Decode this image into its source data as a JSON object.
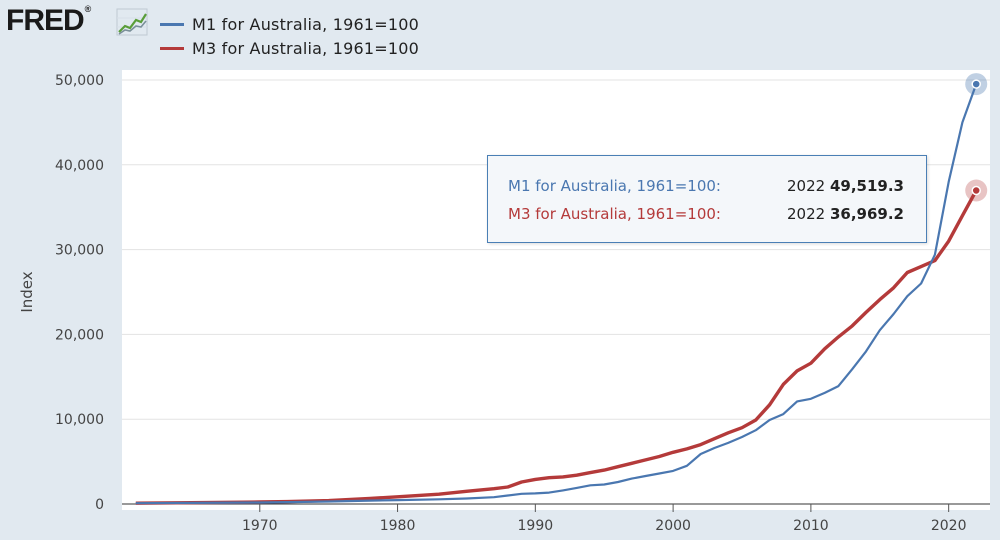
{
  "brand": {
    "logo_text": "FRED",
    "logo_mark": "®"
  },
  "colors": {
    "m1": "#4a77b0",
    "m3": "#b43a3a",
    "plot_bg": "#ffffff",
    "page_bg": "#e1e9f0"
  },
  "legend": [
    {
      "label": "M1 for Australia, 1961=100",
      "color": "#4a77b0"
    },
    {
      "label": "M3 for Australia, 1961=100",
      "color": "#b43a3a"
    }
  ],
  "tooltip": {
    "rows": [
      {
        "name": "M1 for Australia, 1961=100:",
        "year": "2022",
        "value": "49,519.3",
        "color": "#4a77b0"
      },
      {
        "name": "M3 for Australia, 1961=100:",
        "year": "2022",
        "value": "36,969.2",
        "color": "#b43a3a"
      }
    ]
  },
  "chart_data": {
    "type": "line",
    "title": "",
    "xlabel": "",
    "ylabel": "Index",
    "xlim": [
      1960,
      2023
    ],
    "ylim": [
      0,
      50000
    ],
    "xticks": [
      1970,
      1980,
      1990,
      2000,
      2010,
      2020
    ],
    "yticks": [
      0,
      10000,
      20000,
      30000,
      40000,
      50000
    ],
    "ytick_labels": [
      "0",
      "10,000",
      "20,000",
      "30,000",
      "40,000",
      "50,000"
    ],
    "series": [
      {
        "name": "M1 for Australia, 1961=100",
        "x": [
          1961,
          1965,
          1970,
          1972,
          1975,
          1978,
          1980,
          1983,
          1985,
          1987,
          1988,
          1989,
          1990,
          1991,
          1992,
          1993,
          1994,
          1995,
          1996,
          1997,
          1998,
          1999,
          2000,
          2001,
          2002,
          2003,
          2004,
          2005,
          2006,
          2007,
          2008,
          2009,
          2010,
          2011,
          2012,
          2013,
          2014,
          2015,
          2016,
          2017,
          2018,
          2019,
          2020,
          2021,
          2022
        ],
        "values": [
          100,
          130,
          180,
          220,
          300,
          400,
          460,
          560,
          650,
          800,
          1000,
          1200,
          1250,
          1350,
          1600,
          1900,
          2200,
          2300,
          2600,
          3000,
          3300,
          3600,
          3900,
          4500,
          5900,
          6600,
          7200,
          7900,
          8700,
          9900,
          10600,
          12100,
          12400,
          13100,
          13900,
          15900,
          18000,
          20500,
          22400,
          24500,
          26000,
          29400,
          38000,
          45000,
          49519.3
        ]
      },
      {
        "name": "M3 for Australia, 1961=100",
        "x": [
          1961,
          1965,
          1970,
          1972,
          1975,
          1978,
          1980,
          1983,
          1985,
          1987,
          1988,
          1989,
          1990,
          1991,
          1992,
          1993,
          1994,
          1995,
          1996,
          1997,
          1998,
          1999,
          2000,
          2001,
          2002,
          2003,
          2004,
          2005,
          2006,
          2007,
          2008,
          2009,
          2010,
          2011,
          2012,
          2013,
          2014,
          2015,
          2016,
          2017,
          2018,
          2019,
          2020,
          2021,
          2022
        ],
        "values": [
          100,
          150,
          230,
          280,
          400,
          650,
          850,
          1150,
          1500,
          1800,
          2000,
          2600,
          2900,
          3100,
          3200,
          3400,
          3700,
          4000,
          4400,
          4800,
          5200,
          5600,
          6100,
          6500,
          7000,
          7700,
          8400,
          9000,
          9900,
          11700,
          14100,
          15700,
          16600,
          18300,
          19700,
          21000,
          22600,
          24100,
          25500,
          27300,
          28000,
          28700,
          31000,
          34000,
          36969.2
        ]
      }
    ]
  }
}
